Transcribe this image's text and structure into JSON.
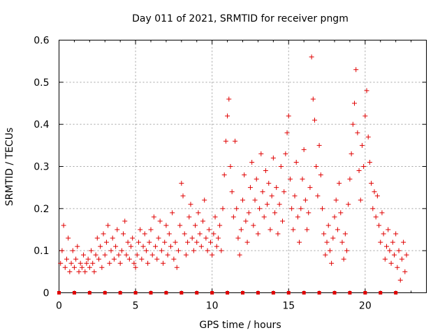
{
  "chart_data": {
    "type": "scatter",
    "title": "Day 011 of 2021, SRMTID for receiver pngm",
    "xlabel": "GPS time / hours",
    "ylabel": "SRMTID / TECUs",
    "xlim": [
      0,
      24
    ],
    "ylim": [
      0,
      0.6
    ],
    "xticks": [
      0,
      5,
      10,
      15,
      20
    ],
    "xtick_labels": [
      "0",
      "5",
      "10",
      "15",
      "20"
    ],
    "yticks": [
      0,
      0.1,
      0.2,
      0.3,
      0.4,
      0.5,
      0.6
    ],
    "ytick_labels": [
      "0",
      "0.1",
      "0.2",
      "0.3",
      "0.4",
      "0.5",
      "0.6"
    ],
    "grid": true,
    "marker_color": "#e00000",
    "series": [
      {
        "name": "SRMTID",
        "marker": "plus",
        "points": [
          [
            0.1,
            0.07
          ],
          [
            0.2,
            0.1
          ],
          [
            0.3,
            0.16
          ],
          [
            0.4,
            0.06
          ],
          [
            0.5,
            0.08
          ],
          [
            0.6,
            0.13
          ],
          [
            0.7,
            0.05
          ],
          [
            0.8,
            0.07
          ],
          [
            0.9,
            0.1
          ],
          [
            1.0,
            0.06
          ],
          [
            1.1,
            0.08
          ],
          [
            1.2,
            0.11
          ],
          [
            1.3,
            0.05
          ],
          [
            1.4,
            0.07
          ],
          [
            1.5,
            0.06
          ],
          [
            1.6,
            0.09
          ],
          [
            1.7,
            0.05
          ],
          [
            1.8,
            0.07
          ],
          [
            1.9,
            0.08
          ],
          [
            2.0,
            0.06
          ],
          [
            2.1,
            0.1
          ],
          [
            2.2,
            0.07
          ],
          [
            2.3,
            0.05
          ],
          [
            2.4,
            0.09
          ],
          [
            2.5,
            0.13
          ],
          [
            2.6,
            0.08
          ],
          [
            2.7,
            0.11
          ],
          [
            2.8,
            0.06
          ],
          [
            2.9,
            0.14
          ],
          [
            3.0,
            0.09
          ],
          [
            3.1,
            0.12
          ],
          [
            3.2,
            0.16
          ],
          [
            3.3,
            0.07
          ],
          [
            3.4,
            0.1
          ],
          [
            3.5,
            0.13
          ],
          [
            3.6,
            0.08
          ],
          [
            3.7,
            0.11
          ],
          [
            3.8,
            0.15
          ],
          [
            3.9,
            0.09
          ],
          [
            4.0,
            0.07
          ],
          [
            4.1,
            0.1
          ],
          [
            4.2,
            0.14
          ],
          [
            4.3,
            0.17
          ],
          [
            4.4,
            0.09
          ],
          [
            4.5,
            0.12
          ],
          [
            4.6,
            0.08
          ],
          [
            4.7,
            0.11
          ],
          [
            4.8,
            0.13
          ],
          [
            4.9,
            0.07
          ],
          [
            5.0,
            0.06
          ],
          [
            5.1,
            0.09
          ],
          [
            5.2,
            0.12
          ],
          [
            5.3,
            0.15
          ],
          [
            5.4,
            0.08
          ],
          [
            5.5,
            0.11
          ],
          [
            5.6,
            0.14
          ],
          [
            5.7,
            0.1
          ],
          [
            5.8,
            0.07
          ],
          [
            5.9,
            0.12
          ],
          [
            6.0,
            0.15
          ],
          [
            6.1,
            0.09
          ],
          [
            6.2,
            0.18
          ],
          [
            6.3,
            0.11
          ],
          [
            6.4,
            0.08
          ],
          [
            6.5,
            0.13
          ],
          [
            6.6,
            0.17
          ],
          [
            6.7,
            0.1
          ],
          [
            6.8,
            0.07
          ],
          [
            6.9,
            0.12
          ],
          [
            7.0,
            0.16
          ],
          [
            7.1,
            0.09
          ],
          [
            7.2,
            0.14
          ],
          [
            7.3,
            0.11
          ],
          [
            7.4,
            0.19
          ],
          [
            7.5,
            0.08
          ],
          [
            7.6,
            0.12
          ],
          [
            7.7,
            0.06
          ],
          [
            7.8,
            0.1
          ],
          [
            7.9,
            0.16
          ],
          [
            8.0,
            0.26
          ],
          [
            8.1,
            0.23
          ],
          [
            8.2,
            0.14
          ],
          [
            8.3,
            0.09
          ],
          [
            8.4,
            0.12
          ],
          [
            8.5,
            0.18
          ],
          [
            8.6,
            0.21
          ],
          [
            8.7,
            0.13
          ],
          [
            8.8,
            0.1
          ],
          [
            8.9,
            0.16
          ],
          [
            9.0,
            0.12
          ],
          [
            9.1,
            0.19
          ],
          [
            9.2,
            0.14
          ],
          [
            9.3,
            0.11
          ],
          [
            9.4,
            0.17
          ],
          [
            9.5,
            0.22
          ],
          [
            9.6,
            0.13
          ],
          [
            9.7,
            0.1
          ],
          [
            9.8,
            0.15
          ],
          [
            9.9,
            0.12
          ],
          [
            10.0,
            0.09
          ],
          [
            10.1,
            0.14
          ],
          [
            10.2,
            0.18
          ],
          [
            10.3,
            0.11
          ],
          [
            10.4,
            0.13
          ],
          [
            10.5,
            0.16
          ],
          [
            10.6,
            0.1
          ],
          [
            10.7,
            0.2
          ],
          [
            10.8,
            0.28
          ],
          [
            10.9,
            0.36
          ],
          [
            11.0,
            0.42
          ],
          [
            11.1,
            0.46
          ],
          [
            11.2,
            0.3
          ],
          [
            11.3,
            0.24
          ],
          [
            11.4,
            0.18
          ],
          [
            11.5,
            0.36
          ],
          [
            11.6,
            0.2
          ],
          [
            11.7,
            0.13
          ],
          [
            11.8,
            0.09
          ],
          [
            11.9,
            0.15
          ],
          [
            12.0,
            0.22
          ],
          [
            12.1,
            0.28
          ],
          [
            12.2,
            0.17
          ],
          [
            12.3,
            0.12
          ],
          [
            12.4,
            0.19
          ],
          [
            12.5,
            0.25
          ],
          [
            12.6,
            0.31
          ],
          [
            12.7,
            0.16
          ],
          [
            12.8,
            0.22
          ],
          [
            12.9,
            0.27
          ],
          [
            13.0,
            0.14
          ],
          [
            13.1,
            0.2
          ],
          [
            13.2,
            0.33
          ],
          [
            13.3,
            0.24
          ],
          [
            13.4,
            0.18
          ],
          [
            13.5,
            0.29
          ],
          [
            13.6,
            0.21
          ],
          [
            13.7,
            0.26
          ],
          [
            13.8,
            0.15
          ],
          [
            13.9,
            0.23
          ],
          [
            14.0,
            0.32
          ],
          [
            14.1,
            0.19
          ],
          [
            14.2,
            0.25
          ],
          [
            14.3,
            0.14
          ],
          [
            14.4,
            0.21
          ],
          [
            14.5,
            0.3
          ],
          [
            14.6,
            0.17
          ],
          [
            14.7,
            0.24
          ],
          [
            14.8,
            0.33
          ],
          [
            14.9,
            0.38
          ],
          [
            15.0,
            0.42
          ],
          [
            15.1,
            0.27
          ],
          [
            15.2,
            0.2
          ],
          [
            15.3,
            0.15
          ],
          [
            15.4,
            0.23
          ],
          [
            15.5,
            0.31
          ],
          [
            15.6,
            0.18
          ],
          [
            15.7,
            0.12
          ],
          [
            15.8,
            0.2
          ],
          [
            15.9,
            0.27
          ],
          [
            16.0,
            0.34
          ],
          [
            16.1,
            0.22
          ],
          [
            16.2,
            0.15
          ],
          [
            16.3,
            0.19
          ],
          [
            16.4,
            0.25
          ],
          [
            16.5,
            0.56
          ],
          [
            16.6,
            0.46
          ],
          [
            16.7,
            0.41
          ],
          [
            16.8,
            0.3
          ],
          [
            16.9,
            0.23
          ],
          [
            17.0,
            0.35
          ],
          [
            17.1,
            0.28
          ],
          [
            17.2,
            0.2
          ],
          [
            17.3,
            0.14
          ],
          [
            17.4,
            0.09
          ],
          [
            17.5,
            0.12
          ],
          [
            17.6,
            0.16
          ],
          [
            17.7,
            0.1
          ],
          [
            17.8,
            0.07
          ],
          [
            17.9,
            0.13
          ],
          [
            18.0,
            0.18
          ],
          [
            18.1,
            0.22
          ],
          [
            18.2,
            0.15
          ],
          [
            18.3,
            0.26
          ],
          [
            18.4,
            0.19
          ],
          [
            18.5,
            0.12
          ],
          [
            18.6,
            0.08
          ],
          [
            18.7,
            0.14
          ],
          [
            18.8,
            0.1
          ],
          [
            18.9,
            0.21
          ],
          [
            19.0,
            0.27
          ],
          [
            19.1,
            0.33
          ],
          [
            19.2,
            0.4
          ],
          [
            19.3,
            0.45
          ],
          [
            19.4,
            0.53
          ],
          [
            19.5,
            0.38
          ],
          [
            19.6,
            0.29
          ],
          [
            19.7,
            0.22
          ],
          [
            19.8,
            0.35
          ],
          [
            19.9,
            0.3
          ],
          [
            20.0,
            0.42
          ],
          [
            20.1,
            0.48
          ],
          [
            20.2,
            0.37
          ],
          [
            20.3,
            0.31
          ],
          [
            20.4,
            0.26
          ],
          [
            20.5,
            0.2
          ],
          [
            20.6,
            0.24
          ],
          [
            20.7,
            0.18
          ],
          [
            20.8,
            0.23
          ],
          [
            20.9,
            0.16
          ],
          [
            21.0,
            0.12
          ],
          [
            21.1,
            0.19
          ],
          [
            21.2,
            0.14
          ],
          [
            21.3,
            0.08
          ],
          [
            21.4,
            0.11
          ],
          [
            21.5,
            0.15
          ],
          [
            21.6,
            0.1
          ],
          [
            21.7,
            0.07
          ],
          [
            21.8,
            0.12
          ],
          [
            21.9,
            0.09
          ],
          [
            22.0,
            0.14
          ],
          [
            22.1,
            0.06
          ],
          [
            22.2,
            0.1
          ],
          [
            22.3,
            0.03
          ],
          [
            22.4,
            0.08
          ],
          [
            22.5,
            0.12
          ],
          [
            22.6,
            0.05
          ],
          [
            22.7,
            0.09
          ]
        ]
      },
      {
        "name": "SRMTID zero-level",
        "marker": "square",
        "points": [
          [
            0.0,
            0
          ],
          [
            1.0,
            0
          ],
          [
            2.0,
            0
          ],
          [
            3.0,
            0
          ],
          [
            4.0,
            0
          ],
          [
            5.0,
            0
          ],
          [
            6.0,
            0
          ],
          [
            7.0,
            0
          ],
          [
            8.0,
            0
          ],
          [
            9.0,
            0
          ],
          [
            10.0,
            0
          ],
          [
            11.0,
            0
          ],
          [
            12.0,
            0
          ],
          [
            13.0,
            0
          ],
          [
            14.0,
            0
          ],
          [
            15.0,
            0
          ],
          [
            16.0,
            0
          ],
          [
            17.0,
            0
          ],
          [
            18.0,
            0
          ],
          [
            19.0,
            0
          ],
          [
            20.0,
            0
          ],
          [
            21.0,
            0
          ],
          [
            22.0,
            0
          ]
        ]
      }
    ]
  }
}
